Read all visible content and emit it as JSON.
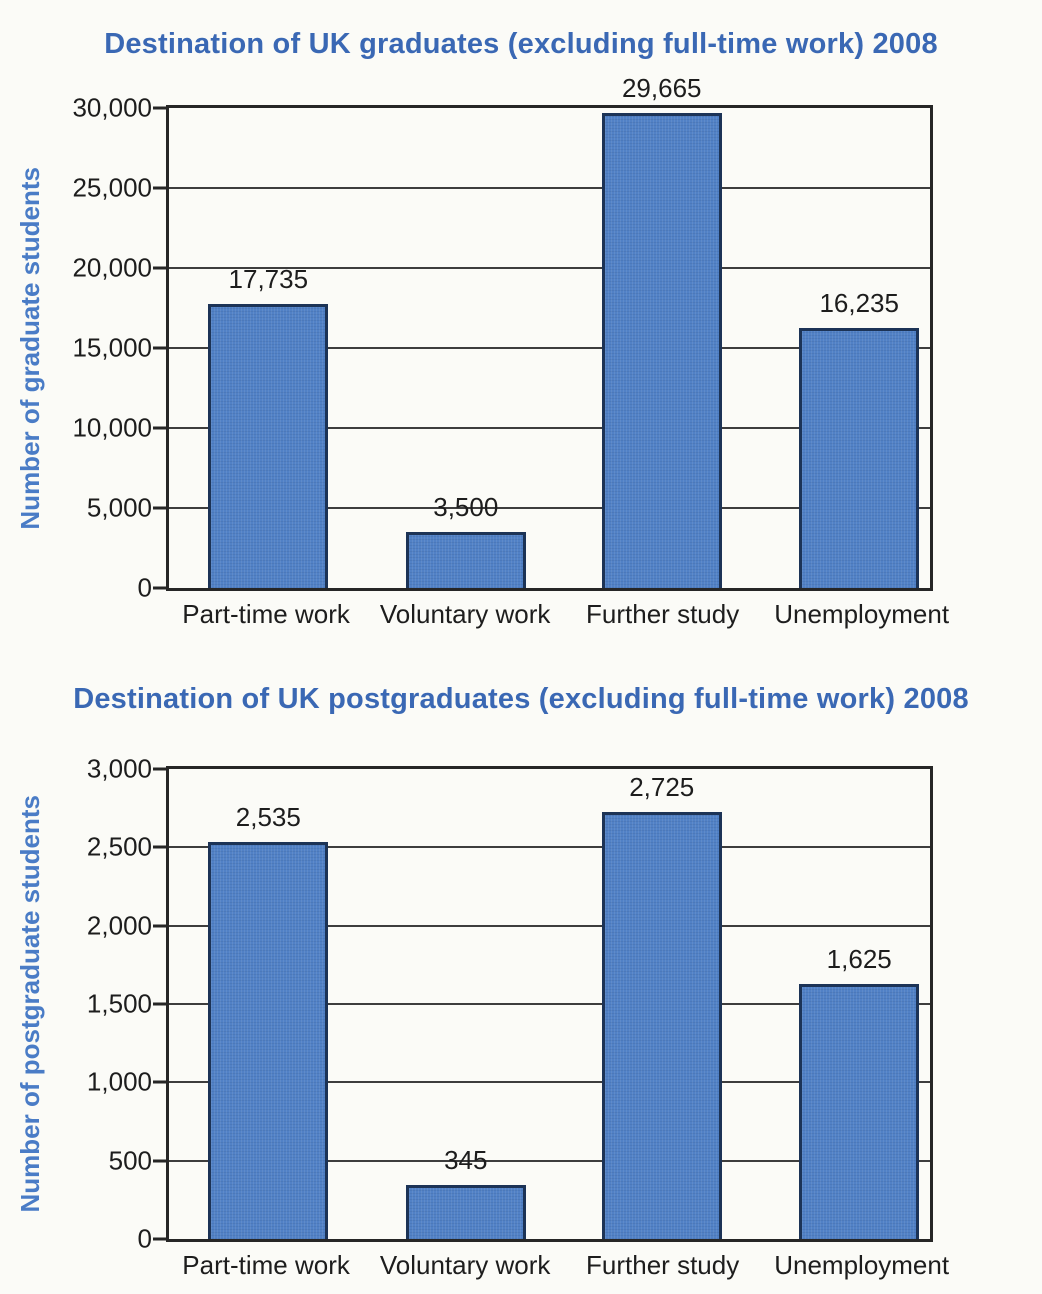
{
  "colors": {
    "title_blue": "#3a68b4",
    "axis_label_blue": "#4a7cc6",
    "bar_fill": "#5181c6",
    "bar_border": "#1c3356",
    "axis_ink": "#262626",
    "gridline_ink": "#3d3d3d",
    "text_ink": "#1d1d1d",
    "paper": "#fbfbf7"
  },
  "chart_data": [
    {
      "type": "bar",
      "title": "Destination of UK graduates (excluding full-time work) 2008",
      "ylabel": "Number of graduate students",
      "xlabel": "",
      "categories": [
        "Part-time work",
        "Voluntary work",
        "Further study",
        "Unemployment"
      ],
      "values": [
        17735,
        3500,
        29665,
        16235
      ],
      "value_labels": [
        "17,735",
        "3,500",
        "29,665",
        "16,235"
      ],
      "ylim": [
        0,
        30000
      ],
      "ytick_step": 5000,
      "ytick_labels": [
        "0",
        "5,000",
        "10,000",
        "15,000",
        "20,000",
        "25,000",
        "30,000"
      ],
      "grid": true,
      "legend": false
    },
    {
      "type": "bar",
      "title": "Destination of UK postgraduates (excluding full-time work) 2008",
      "ylabel": "Number of postgraduate students",
      "xlabel": "",
      "categories": [
        "Part-time work",
        "Voluntary work",
        "Further study",
        "Unemployment"
      ],
      "values": [
        2535,
        345,
        2725,
        1625
      ],
      "value_labels": [
        "2,535",
        "345",
        "2,725",
        "1,625"
      ],
      "ylim": [
        0,
        3000
      ],
      "ytick_step": 500,
      "ytick_labels": [
        "0",
        "500",
        "1,000",
        "1,500",
        "2,000",
        "2,500",
        "3,000"
      ],
      "grid": true,
      "legend": false
    }
  ]
}
